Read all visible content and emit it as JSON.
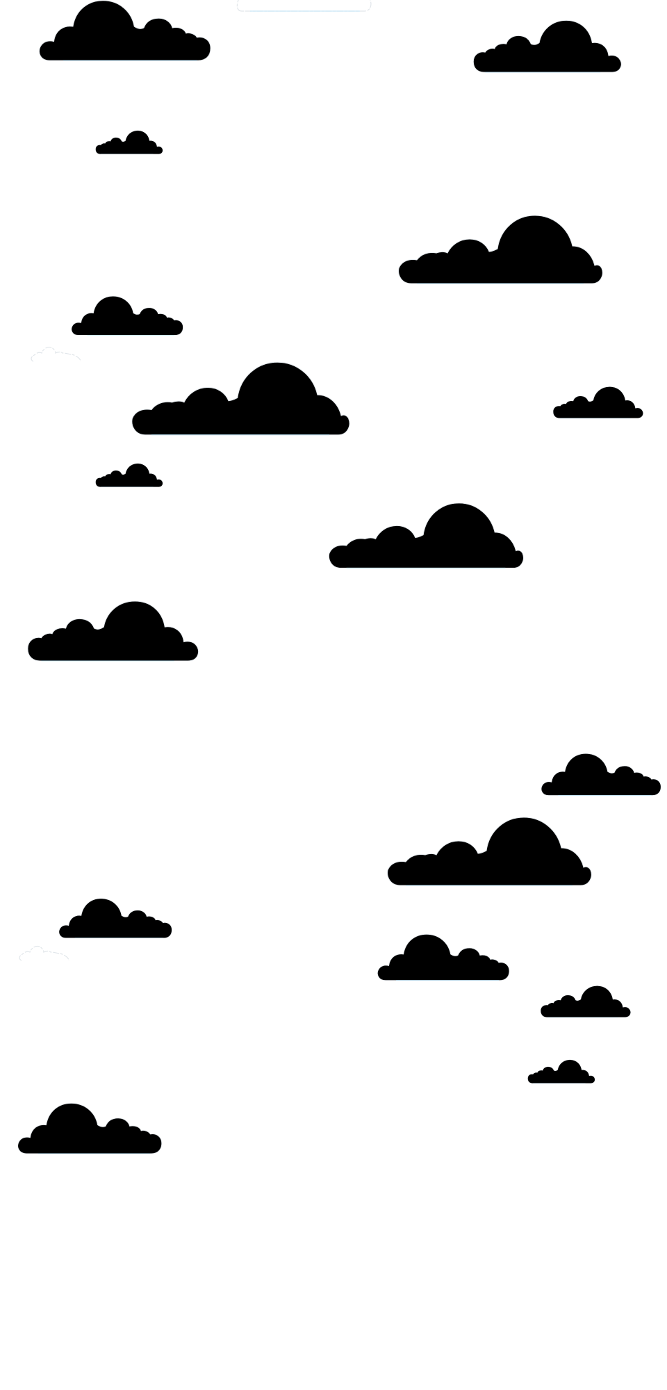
{
  "page": {
    "background_color": "#ffffff",
    "cloud_outline_color": "#e1e6ea",
    "cloud_base_color": "#bde3f7"
  },
  "scene": {
    "icon": "cloud-icon"
  }
}
